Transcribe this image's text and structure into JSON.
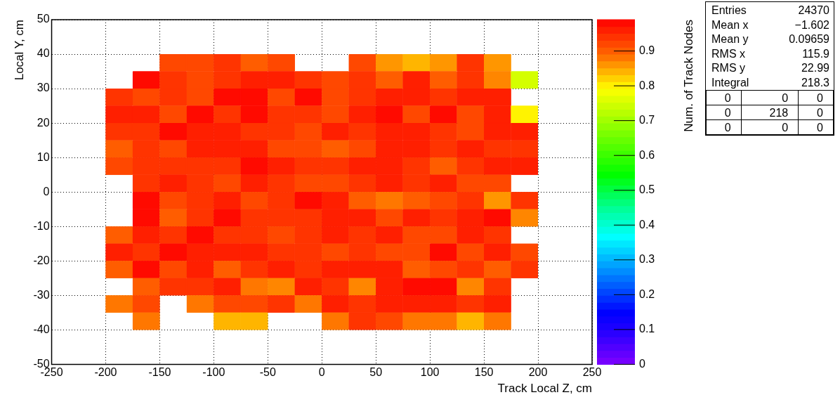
{
  "chart_data": {
    "type": "scatter",
    "xlabel": "Track Local Z, cm",
    "ylabel": "Local Y, cm",
    "clabel": "Num. of Track Nodes",
    "marker": "square",
    "grid": true,
    "legend": false,
    "xlim": [
      -250,
      250
    ],
    "xticks": [
      -250,
      -200,
      -150,
      -100,
      -50,
      0,
      50,
      100,
      150,
      200,
      250
    ],
    "ylim": [
      -50,
      50
    ],
    "yticks": [
      -50,
      -40,
      -30,
      -20,
      -10,
      0,
      10,
      20,
      30,
      40,
      50
    ],
    "clim": [
      0,
      0.99
    ],
    "cticks": [
      0,
      0.1,
      0.2,
      0.3,
      0.4,
      0.5,
      0.6,
      0.7,
      0.8,
      0.9
    ],
    "x": [
      -187.5,
      -162.5,
      -137.5,
      -112.5,
      -87.5,
      -62.5,
      -37.5,
      -12.5,
      12.5,
      37.5,
      62.5,
      87.5,
      112.5,
      137.5,
      162.5,
      187.5
    ],
    "series": [
      {
        "values": [
          null,
          null,
          37.5,
          37.5,
          37.5,
          37.5,
          37.5,
          null,
          null,
          37.5,
          37.5,
          37.5,
          37.5,
          37.5,
          37.5,
          null
        ],
        "cvalues": [
          null,
          null,
          0.92,
          0.92,
          0.94,
          0.9,
          0.92,
          null,
          null,
          0.92,
          0.86,
          0.84,
          0.86,
          0.94,
          0.86,
          null
        ],
        "colors": [
          null,
          null,
          "#ff4800",
          "#ff4800",
          "#ff3400",
          "#ff5d00",
          "#ff4800",
          null,
          null,
          "#ff4800",
          "#ff9600",
          "#ffb500",
          "#ff9600",
          "#ff3400",
          "#ff9600",
          null
        ]
      },
      {
        "values": [
          null,
          32.5,
          32.5,
          32.5,
          32.5,
          32.5,
          32.5,
          32.5,
          32.5,
          32.5,
          32.5,
          32.5,
          32.5,
          32.5,
          32.5,
          32.5
        ],
        "cvalues": [
          null,
          0.98,
          0.94,
          0.92,
          0.94,
          0.96,
          0.96,
          0.94,
          0.92,
          0.94,
          0.9,
          0.96,
          0.9,
          0.94,
          0.87,
          0.75
        ],
        "colors": [
          null,
          "#ff0a00",
          "#ff3400",
          "#ff4800",
          "#ff3400",
          "#ff1f00",
          "#ff1f00",
          "#ff3400",
          "#ff4800",
          "#ff3400",
          "#ff5d00",
          "#ff1f00",
          "#ff5d00",
          "#ff3400",
          "#ff8600",
          "#d4ff00"
        ]
      },
      {
        "values": [
          27.5,
          27.5,
          27.5,
          27.5,
          27.5,
          27.5,
          27.5,
          27.5,
          27.5,
          27.5,
          27.5,
          27.5,
          27.5,
          27.5,
          27.5,
          null
        ],
        "cvalues": [
          0.94,
          0.92,
          0.94,
          0.92,
          0.98,
          0.98,
          0.92,
          0.98,
          0.92,
          0.94,
          0.96,
          0.96,
          0.94,
          0.96,
          0.96,
          null
        ],
        "colors": [
          "#ff3400",
          "#ff4800",
          "#ff3400",
          "#ff4800",
          "#ff0a00",
          "#ff0a00",
          "#ff4800",
          "#ff0a00",
          "#ff4800",
          "#ff3400",
          "#ff1f00",
          "#ff1f00",
          "#ff3400",
          "#ff1f00",
          "#ff1f00",
          null
        ]
      },
      {
        "values": [
          22.5,
          22.5,
          22.5,
          22.5,
          22.5,
          22.5,
          22.5,
          22.5,
          22.5,
          22.5,
          22.5,
          22.5,
          22.5,
          22.5,
          22.5,
          22.5
        ],
        "cvalues": [
          0.96,
          0.96,
          0.92,
          0.98,
          0.94,
          0.98,
          0.94,
          0.94,
          0.92,
          0.96,
          0.98,
          0.92,
          0.98,
          0.92,
          0.96,
          0.8
        ],
        "colors": [
          "#ff1f00",
          "#ff1f00",
          "#ff4800",
          "#ff0a00",
          "#ff3400",
          "#ff0a00",
          "#ff3400",
          "#ff3400",
          "#ff4800",
          "#ff1f00",
          "#ff0a00",
          "#ff4800",
          "#ff0a00",
          "#ff4800",
          "#ff1f00",
          "#fff300"
        ]
      },
      {
        "values": [
          17.5,
          17.5,
          17.5,
          17.5,
          17.5,
          17.5,
          17.5,
          17.5,
          17.5,
          17.5,
          17.5,
          17.5,
          17.5,
          17.5,
          17.5,
          17.5
        ],
        "cvalues": [
          0.94,
          0.94,
          0.98,
          0.96,
          0.96,
          0.94,
          0.94,
          0.92,
          0.96,
          0.94,
          0.96,
          0.96,
          0.94,
          0.92,
          0.96,
          0.96
        ],
        "colors": [
          "#ff3400",
          "#ff3400",
          "#ff0a00",
          "#ff1f00",
          "#ff1f00",
          "#ff3400",
          "#ff3400",
          "#ff4800",
          "#ff1f00",
          "#ff3400",
          "#ff1f00",
          "#ff1f00",
          "#ff3400",
          "#ff4800",
          "#ff1f00",
          "#ff1f00"
        ]
      },
      {
        "values": [
          12.5,
          12.5,
          12.5,
          12.5,
          12.5,
          12.5,
          12.5,
          12.5,
          12.5,
          12.5,
          12.5,
          12.5,
          12.5,
          12.5,
          12.5,
          12.5
        ],
        "cvalues": [
          0.9,
          0.94,
          0.92,
          0.96,
          0.96,
          0.96,
          0.92,
          0.92,
          0.9,
          0.92,
          0.96,
          0.96,
          0.94,
          0.96,
          0.94,
          0.94
        ],
        "colors": [
          "#ff5d00",
          "#ff3400",
          "#ff4800",
          "#ff1f00",
          "#ff1f00",
          "#ff1f00",
          "#ff4800",
          "#ff4800",
          "#ff5d00",
          "#ff4800",
          "#ff1f00",
          "#ff1f00",
          "#ff3400",
          "#ff1f00",
          "#ff3400",
          "#ff3400"
        ]
      },
      {
        "values": [
          7.5,
          7.5,
          7.5,
          7.5,
          7.5,
          7.5,
          7.5,
          7.5,
          7.5,
          7.5,
          7.5,
          7.5,
          7.5,
          7.5,
          7.5,
          7.5
        ],
        "cvalues": [
          0.92,
          0.94,
          0.94,
          0.94,
          0.94,
          0.98,
          0.96,
          0.94,
          0.94,
          0.96,
          0.96,
          0.94,
          0.9,
          0.94,
          0.96,
          0.96
        ],
        "colors": [
          "#ff4800",
          "#ff3400",
          "#ff3400",
          "#ff3400",
          "#ff3400",
          "#ff0a00",
          "#ff1f00",
          "#ff3400",
          "#ff3400",
          "#ff1f00",
          "#ff1f00",
          "#ff3400",
          "#ff5d00",
          "#ff3400",
          "#ff1f00",
          "#ff1f00"
        ]
      },
      {
        "values": [
          null,
          2.5,
          2.5,
          2.5,
          2.5,
          2.5,
          2.5,
          2.5,
          2.5,
          2.5,
          2.5,
          2.5,
          2.5,
          2.5,
          2.5,
          null
        ],
        "cvalues": [
          null,
          0.94,
          0.96,
          0.94,
          0.92,
          0.96,
          0.94,
          0.92,
          0.92,
          0.94,
          0.96,
          0.94,
          0.96,
          0.92,
          0.92,
          null
        ],
        "colors": [
          null,
          "#ff3400",
          "#ff1f00",
          "#ff3400",
          "#ff4800",
          "#ff1f00",
          "#ff3400",
          "#ff4800",
          "#ff4800",
          "#ff3400",
          "#ff1f00",
          "#ff3400",
          "#ff1f00",
          "#ff4800",
          "#ff4800",
          null
        ]
      },
      {
        "values": [
          null,
          -2.5,
          -2.5,
          -2.5,
          -2.5,
          -2.5,
          -2.5,
          -2.5,
          -2.5,
          -2.5,
          -2.5,
          -2.5,
          -2.5,
          -2.5,
          -2.5,
          -2.5
        ],
        "cvalues": [
          null,
          0.98,
          0.92,
          0.94,
          0.96,
          0.92,
          0.94,
          0.98,
          0.96,
          0.9,
          0.88,
          0.9,
          0.92,
          0.94,
          0.86,
          0.94
        ],
        "colors": [
          null,
          "#ff0a00",
          "#ff4800",
          "#ff3400",
          "#ff1f00",
          "#ff4800",
          "#ff3400",
          "#ff0a00",
          "#ff1f00",
          "#ff5d00",
          "#ff7700",
          "#ff5d00",
          "#ff4800",
          "#ff3400",
          "#ff9600",
          "#ff3400"
        ]
      },
      {
        "values": [
          null,
          -7.5,
          -7.5,
          -7.5,
          -7.5,
          -7.5,
          -7.5,
          -7.5,
          -7.5,
          -7.5,
          -7.5,
          -7.5,
          -7.5,
          -7.5,
          -7.5,
          -7.5
        ],
        "cvalues": [
          null,
          0.98,
          0.9,
          0.94,
          0.98,
          0.94,
          0.94,
          0.94,
          0.96,
          0.96,
          0.92,
          0.96,
          0.94,
          0.96,
          0.98,
          0.87
        ],
        "colors": [
          null,
          "#ff0a00",
          "#ff5d00",
          "#ff3400",
          "#ff0a00",
          "#ff3400",
          "#ff3400",
          "#ff3400",
          "#ff1f00",
          "#ff1f00",
          "#ff4800",
          "#ff1f00",
          "#ff3400",
          "#ff1f00",
          "#ff0a00",
          "#ff8600"
        ]
      },
      {
        "values": [
          -12.5,
          -12.5,
          -12.5,
          -12.5,
          -12.5,
          -12.5,
          -12.5,
          -12.5,
          -12.5,
          -12.5,
          -12.5,
          -12.5,
          -12.5,
          -12.5,
          -12.5,
          null
        ],
        "cvalues": [
          0.9,
          0.96,
          0.94,
          0.98,
          0.94,
          0.94,
          0.92,
          0.94,
          0.96,
          0.94,
          0.96,
          0.92,
          0.92,
          0.96,
          0.94,
          null
        ],
        "colors": [
          "#ff5d00",
          "#ff1f00",
          "#ff3400",
          "#ff0a00",
          "#ff3400",
          "#ff3400",
          "#ff4800",
          "#ff3400",
          "#ff1f00",
          "#ff3400",
          "#ff1f00",
          "#ff4800",
          "#ff4800",
          "#ff1f00",
          "#ff3400",
          null
        ]
      },
      {
        "values": [
          -17.5,
          -17.5,
          -17.5,
          -17.5,
          -17.5,
          -17.5,
          -17.5,
          -17.5,
          -17.5,
          -17.5,
          -17.5,
          -17.5,
          -17.5,
          -17.5,
          -17.5,
          -17.5
        ],
        "cvalues": [
          0.96,
          0.94,
          0.98,
          0.96,
          0.96,
          0.96,
          0.94,
          0.94,
          0.92,
          0.94,
          0.92,
          0.92,
          0.98,
          0.92,
          0.96,
          0.92
        ],
        "colors": [
          "#ff1f00",
          "#ff3400",
          "#ff0a00",
          "#ff1f00",
          "#ff1f00",
          "#ff1f00",
          "#ff3400",
          "#ff3400",
          "#ff4800",
          "#ff3400",
          "#ff4800",
          "#ff4800",
          "#ff0a00",
          "#ff4800",
          "#ff1f00",
          "#ff4800"
        ]
      },
      {
        "values": [
          -22.5,
          -22.5,
          -22.5,
          -22.5,
          -22.5,
          -22.5,
          -22.5,
          -22.5,
          -22.5,
          -22.5,
          -22.5,
          -22.5,
          -22.5,
          -22.5,
          -22.5,
          -22.5
        ],
        "cvalues": [
          0.9,
          0.98,
          0.92,
          0.96,
          0.9,
          0.94,
          0.96,
          0.94,
          0.96,
          0.96,
          0.96,
          0.9,
          0.92,
          0.94,
          0.9,
          0.94
        ],
        "colors": [
          "#ff5d00",
          "#ff0a00",
          "#ff4800",
          "#ff1f00",
          "#ff5d00",
          "#ff3400",
          "#ff1f00",
          "#ff3400",
          "#ff1f00",
          "#ff1f00",
          "#ff1f00",
          "#ff5d00",
          "#ff4800",
          "#ff3400",
          "#ff5d00",
          "#ff3400"
        ]
      },
      {
        "values": [
          null,
          -27.5,
          -27.5,
          -27.5,
          -27.5,
          -27.5,
          -27.5,
          -27.5,
          -27.5,
          -27.5,
          -27.5,
          -27.5,
          -27.5,
          -27.5,
          -27.5,
          null
        ],
        "cvalues": [
          null,
          0.9,
          0.94,
          0.94,
          0.96,
          0.88,
          0.87,
          0.96,
          0.94,
          0.87,
          0.96,
          0.98,
          0.98,
          0.87,
          0.94,
          null
        ],
        "colors": [
          null,
          "#ff5d00",
          "#ff3400",
          "#ff3400",
          "#ff1f00",
          "#ff7700",
          "#ff8600",
          "#ff1f00",
          "#ff3400",
          "#ff8600",
          "#ff1f00",
          "#ff0a00",
          "#ff0a00",
          "#ff8600",
          "#ff3400",
          null
        ]
      },
      {
        "values": [
          -32.5,
          -32.5,
          null,
          -32.5,
          -32.5,
          -32.5,
          -32.5,
          -32.5,
          -32.5,
          -32.5,
          -32.5,
          -32.5,
          -32.5,
          -32.5,
          -32.5,
          null
        ],
        "cvalues": [
          0.88,
          0.92,
          null,
          0.88,
          0.92,
          0.92,
          0.94,
          0.88,
          0.96,
          0.94,
          0.96,
          0.96,
          0.96,
          0.94,
          0.96,
          null
        ],
        "colors": [
          "#ff7700",
          "#ff4800",
          null,
          "#ff7700",
          "#ff4800",
          "#ff4800",
          "#ff3400",
          "#ff7700",
          "#ff1f00",
          "#ff3400",
          "#ff1f00",
          "#ff1f00",
          "#ff1f00",
          "#ff3400",
          "#ff1f00",
          null
        ]
      },
      {
        "values": [
          null,
          -37.5,
          null,
          null,
          -37.5,
          -37.5,
          null,
          null,
          -37.5,
          -37.5,
          -37.5,
          -37.5,
          -37.5,
          -37.5,
          -37.5,
          null
        ],
        "cvalues": [
          null,
          0.88,
          null,
          null,
          0.84,
          0.84,
          null,
          null,
          0.88,
          0.94,
          0.92,
          0.88,
          0.88,
          0.84,
          0.88,
          null
        ],
        "colors": [
          null,
          "#ff7700",
          null,
          null,
          "#ffb500",
          "#ffb500",
          null,
          null,
          "#ff7700",
          "#ff3400",
          "#ff4800",
          "#ff7700",
          "#ff7700",
          "#ffb500",
          "#ff7700",
          null
        ]
      }
    ],
    "annotations": [
      "Entries",
      "24370",
      "Mean x",
      "−1.602",
      "Mean y",
      "0.09659",
      "RMS x",
      "115.9",
      "RMS y",
      "22.99",
      "Integral",
      "218.3",
      "0",
      "0",
      "0",
      "0",
      "218",
      "0",
      "0",
      "0",
      "0"
    ]
  }
}
